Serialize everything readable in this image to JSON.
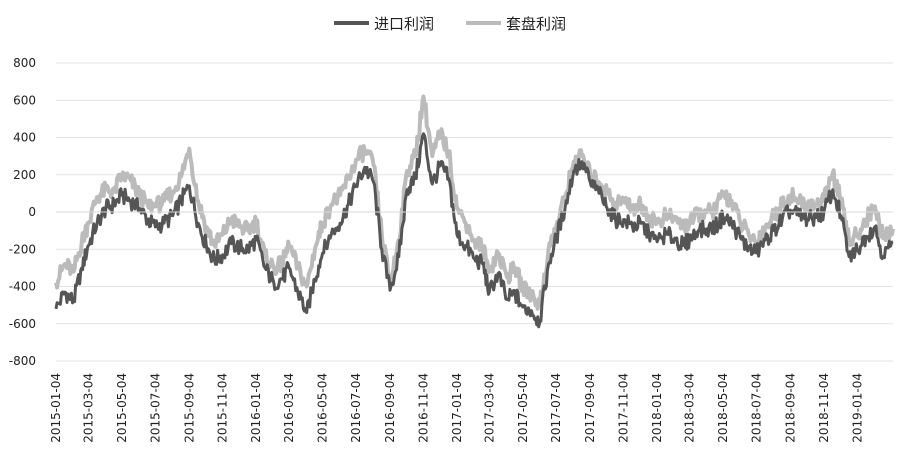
{
  "chart_data": {
    "type": "line",
    "title": "",
    "xlabel": "",
    "ylabel": "",
    "ylim": [
      -800,
      800
    ],
    "yticks": [
      800,
      600,
      400,
      200,
      0,
      -200,
      -400,
      -600,
      -800
    ],
    "xlim": [
      "2015-01-04",
      "2019-03-10"
    ],
    "xticks": [
      "2015-01-04",
      "2015-03-04",
      "2015-05-04",
      "2015-07-04",
      "2015-09-04",
      "2015-11-04",
      "2016-01-04",
      "2016-03-04",
      "2016-05-04",
      "2016-07-04",
      "2016-09-04",
      "2016-11-04",
      "2017-01-04",
      "2017-03-04",
      "2017-05-04",
      "2017-07-04",
      "2017-09-04",
      "2017-11-04",
      "2018-01-04",
      "2018-03-04",
      "2018-05-04",
      "2018-07-04",
      "2018-09-04",
      "2018-11-04",
      "2019-01-04"
    ],
    "grid": true,
    "legend_position": "top-center",
    "series": [
      {
        "name": "进口利润",
        "color": "#555555",
        "points": [
          [
            "2015-01-04",
            -520
          ],
          [
            "2015-01-20",
            -430
          ],
          [
            "2015-02-05",
            -480
          ],
          [
            "2015-02-20",
            -300
          ],
          [
            "2015-03-04",
            -180
          ],
          [
            "2015-03-20",
            -60
          ],
          [
            "2015-04-05",
            20
          ],
          [
            "2015-04-20",
            40
          ],
          [
            "2015-05-04",
            90
          ],
          [
            "2015-05-20",
            60
          ],
          [
            "2015-06-05",
            20
          ],
          [
            "2015-06-20",
            -40
          ],
          [
            "2015-07-04",
            -80
          ],
          [
            "2015-07-20",
            -60
          ],
          [
            "2015-08-05",
            -20
          ],
          [
            "2015-08-20",
            60
          ],
          [
            "2015-09-04",
            140
          ],
          [
            "2015-09-20",
            -60
          ],
          [
            "2015-10-05",
            -180
          ],
          [
            "2015-10-20",
            -260
          ],
          [
            "2015-11-04",
            -230
          ],
          [
            "2015-11-20",
            -170
          ],
          [
            "2015-12-05",
            -190
          ],
          [
            "2015-12-20",
            -200
          ],
          [
            "2016-01-04",
            -150
          ],
          [
            "2016-01-20",
            -300
          ],
          [
            "2016-02-05",
            -380
          ],
          [
            "2016-02-20",
            -360
          ],
          [
            "2016-03-04",
            -300
          ],
          [
            "2016-03-20",
            -430
          ],
          [
            "2016-04-05",
            -540
          ],
          [
            "2016-04-20",
            -360
          ],
          [
            "2016-05-04",
            -220
          ],
          [
            "2016-05-20",
            -120
          ],
          [
            "2016-06-05",
            -60
          ],
          [
            "2016-06-20",
            40
          ],
          [
            "2016-07-04",
            140
          ],
          [
            "2016-07-20",
            240
          ],
          [
            "2016-08-05",
            160
          ],
          [
            "2016-08-20",
            -200
          ],
          [
            "2016-09-04",
            -420
          ],
          [
            "2016-09-20",
            -240
          ],
          [
            "2016-10-05",
            120
          ],
          [
            "2016-10-20",
            180
          ],
          [
            "2016-11-04",
            420
          ],
          [
            "2016-11-20",
            150
          ],
          [
            "2016-12-05",
            250
          ],
          [
            "2016-12-20",
            180
          ],
          [
            "2017-01-04",
            -120
          ],
          [
            "2017-01-20",
            -180
          ],
          [
            "2017-02-05",
            -250
          ],
          [
            "2017-02-20",
            -280
          ],
          [
            "2017-03-04",
            -430
          ],
          [
            "2017-03-20",
            -330
          ],
          [
            "2017-04-05",
            -470
          ],
          [
            "2017-04-20",
            -440
          ],
          [
            "2017-05-04",
            -510
          ],
          [
            "2017-05-20",
            -530
          ],
          [
            "2017-06-04",
            -590
          ],
          [
            "2017-06-20",
            -280
          ],
          [
            "2017-07-04",
            -140
          ],
          [
            "2017-07-20",
            20
          ],
          [
            "2017-08-05",
            220
          ],
          [
            "2017-08-20",
            270
          ],
          [
            "2017-09-04",
            160
          ],
          [
            "2017-09-20",
            100
          ],
          [
            "2017-10-05",
            20
          ],
          [
            "2017-10-20",
            -40
          ],
          [
            "2017-11-04",
            -40
          ],
          [
            "2017-11-20",
            -80
          ],
          [
            "2017-12-05",
            -60
          ],
          [
            "2017-12-20",
            -120
          ],
          [
            "2018-01-04",
            -160
          ],
          [
            "2018-01-20",
            -120
          ],
          [
            "2018-02-05",
            -140
          ],
          [
            "2018-02-20",
            -180
          ],
          [
            "2018-03-04",
            -150
          ],
          [
            "2018-03-20",
            -100
          ],
          [
            "2018-04-05",
            -90
          ],
          [
            "2018-04-20",
            -80
          ],
          [
            "2018-05-04",
            -30
          ],
          [
            "2018-05-20",
            -60
          ],
          [
            "2018-06-05",
            -140
          ],
          [
            "2018-06-20",
            -200
          ],
          [
            "2018-07-04",
            -220
          ],
          [
            "2018-07-20",
            -150
          ],
          [
            "2018-08-05",
            -100
          ],
          [
            "2018-08-20",
            -40
          ],
          [
            "2018-09-04",
            10
          ],
          [
            "2018-09-20",
            -20
          ],
          [
            "2018-10-05",
            -40
          ],
          [
            "2018-10-20",
            -30
          ],
          [
            "2018-11-04",
            0
          ],
          [
            "2018-11-20",
            120
          ],
          [
            "2018-12-05",
            -20
          ],
          [
            "2018-12-20",
            -240
          ],
          [
            "2019-01-04",
            -200
          ],
          [
            "2019-01-20",
            -130
          ],
          [
            "2019-02-05",
            -80
          ],
          [
            "2019-02-20",
            -240
          ],
          [
            "2019-03-10",
            -160
          ]
        ]
      },
      {
        "name": "套盘利润",
        "color": "#bbbbbb",
        "points": [
          [
            "2015-01-04",
            -380
          ],
          [
            "2015-01-20",
            -280
          ],
          [
            "2015-02-05",
            -320
          ],
          [
            "2015-02-20",
            -160
          ],
          [
            "2015-03-04",
            -60
          ],
          [
            "2015-03-20",
            80
          ],
          [
            "2015-04-05",
            120
          ],
          [
            "2015-04-20",
            110
          ],
          [
            "2015-05-04",
            200
          ],
          [
            "2015-05-20",
            170
          ],
          [
            "2015-06-05",
            90
          ],
          [
            "2015-06-20",
            40
          ],
          [
            "2015-07-04",
            30
          ],
          [
            "2015-07-20",
            60
          ],
          [
            "2015-08-05",
            110
          ],
          [
            "2015-08-20",
            190
          ],
          [
            "2015-09-04",
            340
          ],
          [
            "2015-09-20",
            60
          ],
          [
            "2015-10-05",
            -80
          ],
          [
            "2015-10-20",
            -180
          ],
          [
            "2015-11-04",
            -120
          ],
          [
            "2015-11-20",
            -40
          ],
          [
            "2015-12-05",
            -80
          ],
          [
            "2015-12-20",
            -100
          ],
          [
            "2016-01-04",
            -50
          ],
          [
            "2016-01-20",
            -240
          ],
          [
            "2016-02-05",
            -300
          ],
          [
            "2016-02-20",
            -280
          ],
          [
            "2016-03-04",
            -180
          ],
          [
            "2016-03-20",
            -300
          ],
          [
            "2016-04-05",
            -400
          ],
          [
            "2016-04-20",
            -200
          ],
          [
            "2016-05-04",
            -60
          ],
          [
            "2016-05-20",
            40
          ],
          [
            "2016-06-05",
            90
          ],
          [
            "2016-06-20",
            180
          ],
          [
            "2016-07-04",
            280
          ],
          [
            "2016-07-20",
            330
          ],
          [
            "2016-08-05",
            250
          ],
          [
            "2016-08-20",
            -120
          ],
          [
            "2016-09-04",
            -380
          ],
          [
            "2016-09-20",
            -150
          ],
          [
            "2016-10-05",
            220
          ],
          [
            "2016-10-20",
            300
          ],
          [
            "2016-11-04",
            620
          ],
          [
            "2016-11-20",
            300
          ],
          [
            "2016-12-05",
            420
          ],
          [
            "2016-12-20",
            320
          ],
          [
            "2017-01-04",
            20
          ],
          [
            "2017-01-20",
            -60
          ],
          [
            "2017-02-05",
            -150
          ],
          [
            "2017-02-20",
            -190
          ],
          [
            "2017-03-04",
            -320
          ],
          [
            "2017-03-20",
            -220
          ],
          [
            "2017-04-05",
            -350
          ],
          [
            "2017-04-20",
            -300
          ],
          [
            "2017-05-04",
            -410
          ],
          [
            "2017-05-20",
            -440
          ],
          [
            "2017-06-04",
            -500
          ],
          [
            "2017-06-20",
            -200
          ],
          [
            "2017-07-04",
            -80
          ],
          [
            "2017-07-20",
            80
          ],
          [
            "2017-08-05",
            270
          ],
          [
            "2017-08-20",
            300
          ],
          [
            "2017-09-04",
            200
          ],
          [
            "2017-09-20",
            160
          ],
          [
            "2017-10-05",
            100
          ],
          [
            "2017-10-20",
            50
          ],
          [
            "2017-11-04",
            60
          ],
          [
            "2017-11-20",
            20
          ],
          [
            "2017-12-05",
            40
          ],
          [
            "2017-12-20",
            -20
          ],
          [
            "2018-01-04",
            -60
          ],
          [
            "2018-01-20",
            -20
          ],
          [
            "2018-02-05",
            -40
          ],
          [
            "2018-02-20",
            -80
          ],
          [
            "2018-03-04",
            -60
          ],
          [
            "2018-03-20",
            -10
          ],
          [
            "2018-04-05",
            0
          ],
          [
            "2018-04-20",
            10
          ],
          [
            "2018-05-04",
            100
          ],
          [
            "2018-05-20",
            60
          ],
          [
            "2018-06-05",
            -60
          ],
          [
            "2018-06-20",
            -120
          ],
          [
            "2018-07-04",
            -160
          ],
          [
            "2018-07-20",
            -80
          ],
          [
            "2018-08-05",
            -20
          ],
          [
            "2018-08-20",
            40
          ],
          [
            "2018-09-04",
            90
          ],
          [
            "2018-09-20",
            50
          ],
          [
            "2018-10-05",
            30
          ],
          [
            "2018-10-20",
            40
          ],
          [
            "2018-11-04",
            60
          ],
          [
            "2018-11-20",
            210
          ],
          [
            "2018-12-05",
            60
          ],
          [
            "2018-12-20",
            -160
          ],
          [
            "2019-01-04",
            -120
          ],
          [
            "2019-01-20",
            -40
          ],
          [
            "2019-02-05",
            30
          ],
          [
            "2019-02-20",
            -140
          ],
          [
            "2019-03-10",
            -90
          ]
        ]
      }
    ]
  }
}
